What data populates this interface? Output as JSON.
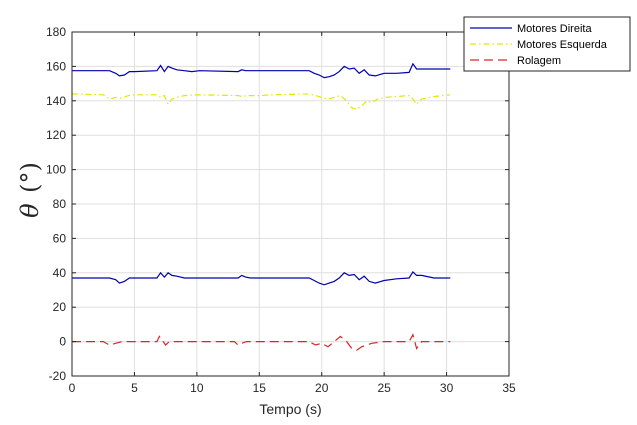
{
  "chart_data": {
    "type": "line",
    "title": "",
    "xlabel": "Tempo (s)",
    "ylabel_symbol": "θ",
    "ylabel_unit": "(°)",
    "xlim": [
      0,
      35
    ],
    "ylim": [
      -20,
      180
    ],
    "xticks": [
      0,
      5,
      10,
      15,
      20,
      25,
      30,
      35
    ],
    "yticks": [
      -20,
      0,
      20,
      40,
      60,
      80,
      100,
      120,
      140,
      160,
      180
    ],
    "grid": true,
    "legend_position": "top-right, outside",
    "series": [
      {
        "name": "Motores Direita",
        "color": "#0000b0",
        "dash": "solid",
        "x": [
          0,
          2.5,
          3,
          3.5,
          3.8,
          4.2,
          4.6,
          5.0,
          6.8,
          7.1,
          7.4,
          7.7,
          8.0,
          8.4,
          9.0,
          9.6,
          10.2,
          13.3,
          13.6,
          13.9,
          14.3,
          15.0,
          16.0,
          19.0,
          19.4,
          19.8,
          20.2,
          20.6,
          21.0,
          21.4,
          21.8,
          22.2,
          22.6,
          23.0,
          23.4,
          23.8,
          24.3,
          25.0,
          26.0,
          27.0,
          27.3,
          27.6,
          28.0,
          29.0,
          30.3
        ],
        "y": [
          157.5,
          157.5,
          157.5,
          156,
          154.5,
          155,
          157,
          157,
          157.5,
          160.5,
          157,
          160,
          159,
          158,
          157.5,
          157,
          157.5,
          157,
          158,
          157.5,
          157.5,
          157.5,
          157.5,
          157.5,
          156,
          155,
          153.5,
          154,
          155,
          157,
          160,
          158.5,
          159,
          156,
          158,
          155,
          154.5,
          156,
          156,
          156.5,
          161.5,
          158.5,
          158.5,
          158.5,
          158.5
        ]
      },
      {
        "name": "Motores Esquerda",
        "color": "#e6e600",
        "dash": "dash-dot",
        "x": [
          0,
          2.5,
          3.0,
          3.5,
          4.0,
          4.5,
          5.0,
          6.8,
          7.1,
          7.4,
          7.7,
          8.0,
          8.4,
          9.0,
          10.0,
          13.3,
          13.6,
          14.0,
          15.0,
          16.0,
          19.0,
          19.5,
          20.0,
          20.5,
          21.0,
          21.5,
          22.0,
          22.4,
          22.8,
          23.2,
          23.6,
          24.0,
          24.5,
          25.0,
          26.0,
          27.0,
          27.3,
          27.6,
          28.0,
          29.0,
          30.3
        ],
        "y": [
          144,
          143.5,
          141,
          142,
          141.5,
          143,
          143.5,
          143.5,
          142,
          143,
          138,
          141,
          142,
          143,
          143.5,
          143,
          142.5,
          143,
          143,
          143.5,
          144,
          143,
          142,
          141,
          142,
          143,
          140,
          136,
          135,
          137,
          140,
          139,
          141,
          142,
          142.5,
          143,
          141,
          138,
          141,
          142.5,
          143.5
        ]
      },
      {
        "name": "Rolagem",
        "color": "#d62728",
        "dash": "dashed",
        "x": [
          0,
          2.5,
          3.0,
          3.5,
          4.0,
          5.0,
          6.8,
          7.0,
          7.2,
          7.5,
          7.8,
          8.2,
          9.0,
          10.0,
          13.0,
          13.3,
          13.6,
          14.0,
          15.0,
          16.0,
          19.0,
          19.5,
          20.0,
          20.5,
          21.0,
          21.5,
          22.0,
          22.4,
          22.8,
          23.2,
          23.6,
          24.0,
          25.0,
          26.0,
          27.0,
          27.3,
          27.6,
          28.0,
          29.0,
          30.3
        ],
        "y": [
          0,
          0,
          -2,
          -1,
          0,
          0,
          0,
          3,
          1,
          -2,
          0,
          0,
          0,
          0,
          0,
          -2,
          -1,
          0,
          0,
          0,
          0,
          -2,
          -1,
          -3,
          0,
          3,
          0,
          -4,
          -5,
          -3,
          -2,
          -1,
          0,
          0,
          0,
          4,
          -4,
          0,
          0,
          0
        ]
      },
      {
        "name": "",
        "color": "#0000b0",
        "dash": "solid",
        "x": [
          0,
          2.5,
          3.0,
          3.5,
          3.8,
          4.2,
          4.6,
          5.0,
          6.8,
          7.1,
          7.4,
          7.7,
          8.0,
          8.4,
          9.0,
          9.6,
          10.2,
          13.3,
          13.6,
          13.9,
          14.3,
          15.0,
          16.0,
          19.0,
          19.4,
          19.8,
          20.2,
          20.6,
          21.0,
          21.4,
          21.8,
          22.2,
          22.6,
          23.0,
          23.4,
          23.8,
          24.3,
          25.0,
          26.0,
          27.0,
          27.3,
          27.6,
          28.0,
          29.0,
          30.3
        ],
        "y": [
          37,
          37,
          37,
          36,
          34,
          35,
          37,
          37,
          37,
          40,
          37.5,
          40,
          38.5,
          38,
          37,
          37,
          37,
          37,
          38.5,
          37.5,
          37,
          37,
          37,
          37,
          35.5,
          34,
          33,
          34,
          35,
          37,
          40,
          38.5,
          39,
          36,
          38,
          35,
          34,
          35.5,
          36.5,
          37,
          40.5,
          38.5,
          38.5,
          37,
          37
        ]
      }
    ]
  }
}
